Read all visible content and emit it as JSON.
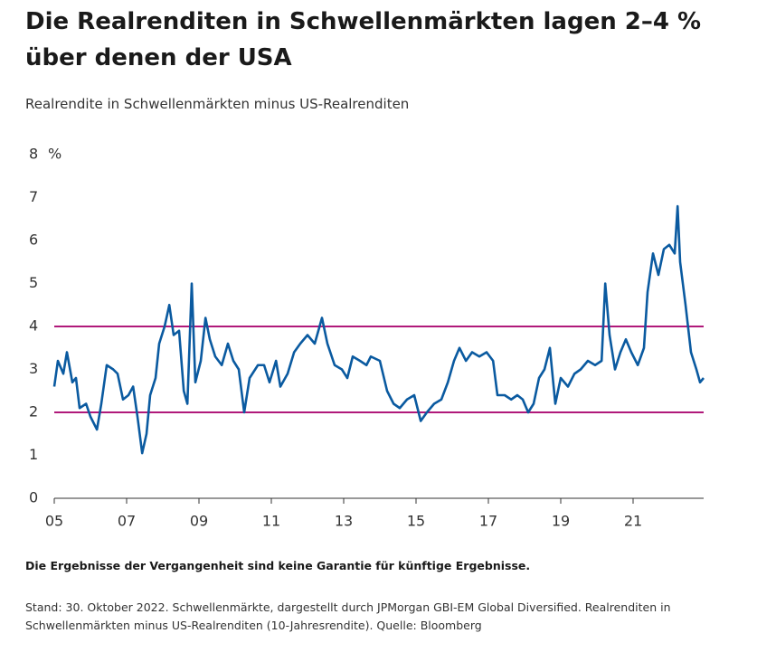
{
  "chart_data": {
    "type": "line",
    "title": "Die Realrenditen in Schwellenmärkten lagen 2–4 % über denen der USA",
    "subtitle": "Realrendite in Schwellenmärkten minus US-Realrenditen",
    "y_unit": "%",
    "note": "Die Ergebnisse der Vergangenheit sind keine Garantie für künftige Ergebnisse.",
    "source": "Stand: 30. Oktober 2022. Schwellenmärkte, dargestellt durch JPMorgan GBI-EM Global Diversified. Realrenditen in Schwellenmärkten minus US-Realrenditen (10-Jahresrendite). Quelle: Bloomberg",
    "xlim": [
      2005,
      2022.95
    ],
    "ylim": [
      0,
      8
    ],
    "yticks": [
      0,
      1,
      2,
      3,
      4,
      5,
      6,
      7,
      8
    ],
    "xticks": [
      {
        "value": 2005,
        "label": "05"
      },
      {
        "value": 2007,
        "label": "07"
      },
      {
        "value": 2009,
        "label": "09"
      },
      {
        "value": 2011,
        "label": "11"
      },
      {
        "value": 2013,
        "label": "13"
      },
      {
        "value": 2015,
        "label": "15"
      },
      {
        "value": 2017,
        "label": "17"
      },
      {
        "value": 2019,
        "label": "19"
      },
      {
        "value": 2021,
        "label": "21"
      }
    ],
    "reference_lines": [
      2,
      4
    ],
    "reference_color": "#b0197a",
    "x": [
      2005.0,
      2005.1,
      2005.25,
      2005.35,
      2005.5,
      2005.6,
      2005.7,
      2005.88,
      2006.0,
      2006.18,
      2006.3,
      2006.45,
      2006.63,
      2006.75,
      2006.9,
      2007.05,
      2007.18,
      2007.3,
      2007.43,
      2007.55,
      2007.65,
      2007.8,
      2007.9,
      2008.05,
      2008.18,
      2008.3,
      2008.45,
      2008.58,
      2008.68,
      2008.8,
      2008.9,
      2009.05,
      2009.18,
      2009.3,
      2009.45,
      2009.63,
      2009.8,
      2009.95,
      2010.1,
      2010.25,
      2010.4,
      2010.63,
      2010.8,
      2010.95,
      2011.13,
      2011.25,
      2011.45,
      2011.63,
      2011.8,
      2012.0,
      2012.2,
      2012.4,
      2012.55,
      2012.75,
      2012.95,
      2013.1,
      2013.25,
      2013.45,
      2013.63,
      2013.75,
      2014.0,
      2014.2,
      2014.38,
      2014.55,
      2014.75,
      2014.95,
      2015.13,
      2015.3,
      2015.5,
      2015.7,
      2015.88,
      2016.05,
      2016.2,
      2016.38,
      2016.55,
      2016.75,
      2016.95,
      2017.13,
      2017.25,
      2017.45,
      2017.63,
      2017.8,
      2017.95,
      2018.1,
      2018.25,
      2018.4,
      2018.55,
      2018.7,
      2018.85,
      2019.0,
      2019.2,
      2019.38,
      2019.55,
      2019.75,
      2019.95,
      2020.13,
      2020.23,
      2020.35,
      2020.5,
      2020.65,
      2020.8,
      2020.95,
      2021.13,
      2021.3,
      2021.4,
      2021.55,
      2021.7,
      2021.85,
      2022.0,
      2022.15,
      2022.23,
      2022.3,
      2022.45,
      2022.6,
      2022.75,
      2022.85,
      2022.95
    ],
    "series": [
      {
        "color": "#0a5aa0",
        "values": [
          2.6,
          3.2,
          2.9,
          3.4,
          2.7,
          2.8,
          2.1,
          2.2,
          1.9,
          1.6,
          2.2,
          3.1,
          3.0,
          2.9,
          2.3,
          2.4,
          2.6,
          1.9,
          1.05,
          1.5,
          2.4,
          2.8,
          3.6,
          4.0,
          4.5,
          3.8,
          3.9,
          2.5,
          2.2,
          5.0,
          2.7,
          3.2,
          4.2,
          3.7,
          3.3,
          3.1,
          3.6,
          3.2,
          3.0,
          2.0,
          2.8,
          3.1,
          3.1,
          2.7,
          3.2,
          2.6,
          2.9,
          3.4,
          3.6,
          3.8,
          3.6,
          4.2,
          3.6,
          3.1,
          3.0,
          2.8,
          3.3,
          3.2,
          3.1,
          3.3,
          3.2,
          2.5,
          2.2,
          2.1,
          2.3,
          2.4,
          1.8,
          2.0,
          2.2,
          2.3,
          2.7,
          3.2,
          3.5,
          3.2,
          3.4,
          3.3,
          3.4,
          3.2,
          2.4,
          2.4,
          2.3,
          2.4,
          2.3,
          2.0,
          2.2,
          2.8,
          3.0,
          3.5,
          2.2,
          2.8,
          2.6,
          2.9,
          3.0,
          3.2,
          3.1,
          3.2,
          5.0,
          3.8,
          3.0,
          3.4,
          3.7,
          3.4,
          3.1,
          3.5,
          4.8,
          5.7,
          5.2,
          5.8,
          5.9,
          5.7,
          6.8,
          5.5,
          4.5,
          3.4,
          3.0,
          2.7,
          2.8
        ]
      }
    ]
  }
}
